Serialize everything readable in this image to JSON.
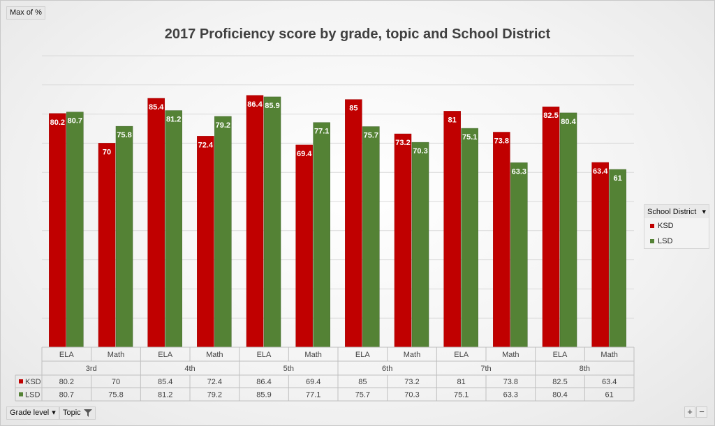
{
  "value_field": "Max of %",
  "title": "2017 Proficiency score by grade, topic and School District",
  "legend": {
    "header": "School District",
    "items": [
      {
        "name": "KSD",
        "color": "#c00000"
      },
      {
        "name": "LSD",
        "color": "#548235"
      }
    ]
  },
  "filters": {
    "grade_level": "Grade level",
    "topic": "Topic"
  },
  "zoom": {
    "plus": "+",
    "minus": "−"
  },
  "chart_data": {
    "type": "bar",
    "grades": [
      "3rd",
      "4th",
      "5th",
      "6th",
      "7th",
      "8th"
    ],
    "topics": [
      "ELA",
      "Math"
    ],
    "categories": [
      "ELA",
      "Math",
      "ELA",
      "Math",
      "ELA",
      "Math",
      "ELA",
      "Math",
      "ELA",
      "Math",
      "ELA",
      "Math"
    ],
    "series": [
      {
        "name": "KSD",
        "color": "#c00000",
        "values": [
          80.2,
          70,
          85.4,
          72.4,
          86.4,
          69.4,
          85,
          73.2,
          81,
          73.8,
          82.5,
          63.4
        ]
      },
      {
        "name": "LSD",
        "color": "#548235",
        "values": [
          80.7,
          75.8,
          81.2,
          79.2,
          85.9,
          77.1,
          75.7,
          70.3,
          75.1,
          63.3,
          80.4,
          61
        ]
      }
    ],
    "ylim": [
      0,
      100
    ],
    "grid": true,
    "data_table": true
  }
}
